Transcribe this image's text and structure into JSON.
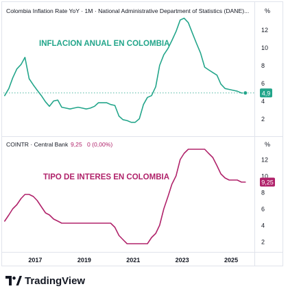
{
  "chart_data": [
    {
      "type": "line",
      "title": "Colombia Inflation Rate YoY · 1M · National Administrative Department of Statistics (DANE)...",
      "annotation": "INFLACION ANUAL EN COLOMBIA",
      "line_color": "#22a58a",
      "last_value_label": "4,9",
      "y_ticks": [
        "12",
        "10",
        "8",
        "6",
        "4",
        "2"
      ],
      "ylim": [
        0,
        14
      ],
      "grid": false,
      "dotted_reference_at": 4.9,
      "x": [
        2015.75,
        2015.92,
        2016.08,
        2016.25,
        2016.42,
        2016.58,
        2016.75,
        2016.92,
        2017.08,
        2017.25,
        2017.42,
        2017.58,
        2017.75,
        2017.92,
        2018.08,
        2018.25,
        2018.42,
        2018.58,
        2018.75,
        2018.92,
        2019.08,
        2019.25,
        2019.42,
        2019.58,
        2019.75,
        2019.92,
        2020.08,
        2020.25,
        2020.42,
        2020.58,
        2020.75,
        2020.92,
        2021.08,
        2021.25,
        2021.42,
        2021.58,
        2021.75,
        2021.92,
        2022.08,
        2022.25,
        2022.42,
        2022.58,
        2022.75,
        2022.92,
        2023.08,
        2023.25,
        2023.42,
        2023.58,
        2023.75,
        2023.92,
        2024.08,
        2024.25,
        2024.42,
        2024.58,
        2024.75,
        2024.92,
        2025.08,
        2025.25,
        2025.42,
        2025.58
      ],
      "values": [
        4.6,
        5.4,
        6.6,
        7.6,
        8.1,
        8.9,
        6.5,
        5.8,
        5.2,
        4.6,
        3.9,
        3.4,
        4.0,
        4.1,
        3.3,
        3.2,
        3.1,
        3.2,
        3.3,
        3.2,
        3.1,
        3.2,
        3.4,
        3.8,
        3.8,
        3.8,
        3.6,
        3.5,
        2.3,
        1.9,
        1.8,
        1.6,
        1.6,
        2.0,
        3.6,
        4.4,
        4.6,
        5.6,
        8.0,
        9.2,
        9.9,
        10.8,
        11.8,
        13.1,
        13.3,
        12.8,
        11.6,
        10.5,
        9.4,
        7.8,
        7.5,
        7.2,
        6.9,
        5.9,
        5.4,
        5.3,
        5.2,
        5.1,
        4.9,
        4.9
      ]
    },
    {
      "type": "line",
      "title": "COINTR · Central Bank",
      "header_value": "9,25",
      "header_change": "0 (0,00%)",
      "annotation": "TIPO DE INTERES EN COLOMBIA",
      "line_color": "#b0226a",
      "last_value_label": "9,25",
      "y_ticks": [
        "12",
        "10",
        "8",
        "6",
        "4",
        "2"
      ],
      "ylim": [
        0,
        14
      ],
      "grid": false,
      "x": [
        2015.75,
        2015.92,
        2016.08,
        2016.25,
        2016.42,
        2016.58,
        2016.75,
        2016.92,
        2017.08,
        2017.25,
        2017.42,
        2017.58,
        2017.75,
        2017.92,
        2018.08,
        2018.25,
        2018.42,
        2018.58,
        2018.75,
        2018.92,
        2019.08,
        2019.25,
        2019.42,
        2019.58,
        2019.75,
        2019.92,
        2020.08,
        2020.25,
        2020.42,
        2020.58,
        2020.75,
        2020.92,
        2021.08,
        2021.25,
        2021.42,
        2021.58,
        2021.75,
        2021.92,
        2022.08,
        2022.25,
        2022.42,
        2022.58,
        2022.75,
        2022.92,
        2023.08,
        2023.25,
        2023.42,
        2023.58,
        2023.75,
        2023.92,
        2024.08,
        2024.25,
        2024.42,
        2024.58,
        2024.75,
        2024.92,
        2025.08,
        2025.25,
        2025.42,
        2025.58
      ],
      "values": [
        4.5,
        5.25,
        6.0,
        6.5,
        7.25,
        7.75,
        7.75,
        7.5,
        7.0,
        6.25,
        5.5,
        5.25,
        4.75,
        4.5,
        4.25,
        4.25,
        4.25,
        4.25,
        4.25,
        4.25,
        4.25,
        4.25,
        4.25,
        4.25,
        4.25,
        4.25,
        4.25,
        3.75,
        2.75,
        2.25,
        1.75,
        1.75,
        1.75,
        1.75,
        1.75,
        1.75,
        2.5,
        3.0,
        4.0,
        6.0,
        7.5,
        9.0,
        10.0,
        12.0,
        12.75,
        13.25,
        13.25,
        13.25,
        13.25,
        13.25,
        12.75,
        12.25,
        11.25,
        10.25,
        9.75,
        9.5,
        9.5,
        9.5,
        9.25,
        9.25
      ]
    }
  ],
  "x_axis": {
    "ticks": [
      {
        "year": 2017,
        "label": "2017"
      },
      {
        "year": 2019,
        "label": "2019"
      },
      {
        "year": 2021,
        "label": "2021"
      },
      {
        "year": 2023,
        "label": "2023"
      },
      {
        "year": 2025,
        "label": "2025"
      }
    ],
    "range": [
      2015.7,
      2025.95
    ]
  },
  "percent_label": "%",
  "brand": {
    "text": "TradingView",
    "color": "#131722"
  }
}
